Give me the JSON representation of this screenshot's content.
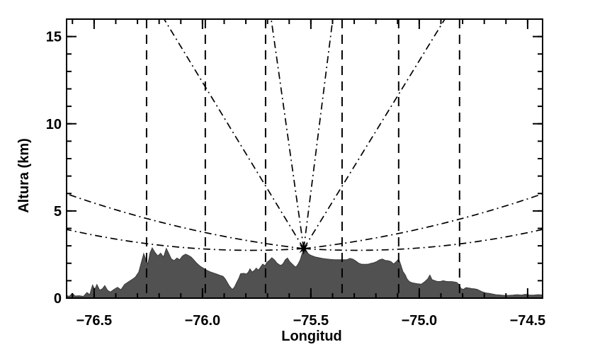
{
  "figure": {
    "description": "Terrain altitude cross-section with radar beams radiating from volcano summit"
  },
  "chart_data": {
    "type": "line",
    "title": "",
    "xlabel": "Longitud",
    "ylabel": "Altura (km)",
    "xlim": [
      -76.627,
      -74.431
    ],
    "ylim": [
      0,
      16
    ],
    "grid": false,
    "xticks": {
      "major": [
        -76.5,
        -76.0,
        -75.5,
        -75.0,
        -74.5
      ],
      "labels": [
        "−76.5",
        "−76.0",
        "−75.5",
        "−75.0",
        "−74.5"
      ],
      "minor_step": 0.1
    },
    "yticks": {
      "major": [
        0,
        5,
        10,
        15
      ],
      "labels": [
        "0",
        "5",
        "10",
        "15"
      ],
      "minor_step": 1
    },
    "radar": {
      "lon": -75.533,
      "alt_km": 2.84,
      "marker": "star"
    },
    "vertical_dashed_lines_lon": [
      -76.258,
      -75.987,
      -75.709,
      -75.356,
      -75.095,
      -74.814
    ],
    "beams_straight": [
      {
        "end_lon": -76.177,
        "end_alt": 16
      },
      {
        "end_lon": -75.683,
        "end_alt": 16
      },
      {
        "end_lon": -75.399,
        "end_alt": 16
      },
      {
        "end_lon": -74.882,
        "end_alt": 16
      }
    ],
    "beams_curved": [
      {
        "end": [
          -76.627,
          5.98
        ],
        "ctrl": [
          -76.08,
          3.62
        ]
      },
      {
        "end": [
          -76.627,
          3.94
        ],
        "ctrl": [
          -76.08,
          2.4
        ]
      },
      {
        "end": [
          -74.431,
          5.98
        ],
        "ctrl": [
          -74.982,
          3.62
        ]
      },
      {
        "end": [
          -74.431,
          3.94
        ],
        "ctrl": [
          -74.982,
          2.4
        ]
      }
    ],
    "terrain_profile": [
      [
        -76.627,
        0.15
      ],
      [
        -76.614,
        0.1
      ],
      [
        -76.601,
        0.28
      ],
      [
        -76.588,
        0.12
      ],
      [
        -76.569,
        0.14
      ],
      [
        -76.549,
        0.1
      ],
      [
        -76.533,
        0.32
      ],
      [
        -76.52,
        0.2
      ],
      [
        -76.507,
        0.75
      ],
      [
        -76.497,
        0.5
      ],
      [
        -76.487,
        0.78
      ],
      [
        -76.474,
        0.45
      ],
      [
        -76.461,
        0.55
      ],
      [
        -76.451,
        0.72
      ],
      [
        -76.438,
        0.45
      ],
      [
        -76.425,
        0.35
      ],
      [
        -76.408,
        0.5
      ],
      [
        -76.392,
        0.62
      ],
      [
        -76.376,
        0.48
      ],
      [
        -76.36,
        0.78
      ],
      [
        -76.343,
        0.92
      ],
      [
        -76.327,
        1.05
      ],
      [
        -76.31,
        1.2
      ],
      [
        -76.294,
        1.5
      ],
      [
        -76.281,
        2.1
      ],
      [
        -76.271,
        2.55
      ],
      [
        -76.261,
        2.2
      ],
      [
        -76.252,
        1.95
      ],
      [
        -76.242,
        2.6
      ],
      [
        -76.232,
        2.88
      ],
      [
        -76.219,
        2.62
      ],
      [
        -76.206,
        2.42
      ],
      [
        -76.193,
        2.58
      ],
      [
        -76.18,
        2.35
      ],
      [
        -76.167,
        2.85
      ],
      [
        -76.157,
        2.6
      ],
      [
        -76.144,
        2.25
      ],
      [
        -76.131,
        2.15
      ],
      [
        -76.118,
        2.3
      ],
      [
        -76.105,
        2.2
      ],
      [
        -76.092,
        2.42
      ],
      [
        -76.078,
        2.52
      ],
      [
        -76.065,
        2.45
      ],
      [
        -76.052,
        2.35
      ],
      [
        -76.039,
        2.18
      ],
      [
        -76.026,
        2.0
      ],
      [
        -76.013,
        1.85
      ],
      [
        -75.997,
        1.72
      ],
      [
        -75.984,
        1.62
      ],
      [
        -75.967,
        1.52
      ],
      [
        -75.951,
        1.45
      ],
      [
        -75.935,
        1.38
      ],
      [
        -75.918,
        1.3
      ],
      [
        -75.905,
        1.25
      ],
      [
        -75.895,
        1.1
      ],
      [
        -75.886,
        0.9
      ],
      [
        -75.876,
        0.7
      ],
      [
        -75.863,
        0.5
      ],
      [
        -75.853,
        0.62
      ],
      [
        -75.843,
        0.88
      ],
      [
        -75.833,
        1.12
      ],
      [
        -75.824,
        1.4
      ],
      [
        -75.81,
        1.42
      ],
      [
        -75.797,
        1.38
      ],
      [
        -75.788,
        1.5
      ],
      [
        -75.781,
        1.68
      ],
      [
        -75.771,
        1.5
      ],
      [
        -75.761,
        1.58
      ],
      [
        -75.752,
        1.72
      ],
      [
        -75.742,
        1.6
      ],
      [
        -75.732,
        1.78
      ],
      [
        -75.722,
        1.95
      ],
      [
        -75.712,
        1.86
      ],
      [
        -75.703,
        2.05
      ],
      [
        -75.693,
        2.15
      ],
      [
        -75.68,
        2.32
      ],
      [
        -75.667,
        2.18
      ],
      [
        -75.657,
        2.02
      ],
      [
        -75.647,
        1.92
      ],
      [
        -75.637,
        1.88
      ],
      [
        -75.627,
        2.0
      ],
      [
        -75.618,
        2.2
      ],
      [
        -75.608,
        2.3
      ],
      [
        -75.598,
        2.1
      ],
      [
        -75.588,
        1.98
      ],
      [
        -75.578,
        1.85
      ],
      [
        -75.569,
        1.78
      ],
      [
        -75.559,
        1.95
      ],
      [
        -75.549,
        2.2
      ],
      [
        -75.539,
        2.6
      ],
      [
        -75.533,
        2.88
      ],
      [
        -75.526,
        2.75
      ],
      [
        -75.516,
        2.6
      ],
      [
        -75.507,
        2.5
      ],
      [
        -75.493,
        2.42
      ],
      [
        -75.48,
        2.36
      ],
      [
        -75.464,
        2.32
      ],
      [
        -75.448,
        2.28
      ],
      [
        -75.431,
        2.25
      ],
      [
        -75.412,
        2.22
      ],
      [
        -75.392,
        2.2
      ],
      [
        -75.373,
        2.2
      ],
      [
        -75.353,
        2.2
      ],
      [
        -75.333,
        2.21
      ],
      [
        -75.32,
        2.28
      ],
      [
        -75.307,
        2.24
      ],
      [
        -75.294,
        2.14
      ],
      [
        -75.281,
        2.02
      ],
      [
        -75.268,
        1.95
      ],
      [
        -75.252,
        1.94
      ],
      [
        -75.235,
        1.95
      ],
      [
        -75.222,
        2.0
      ],
      [
        -75.209,
        2.03
      ],
      [
        -75.196,
        2.1
      ],
      [
        -75.183,
        2.2
      ],
      [
        -75.17,
        2.24
      ],
      [
        -75.157,
        2.16
      ],
      [
        -75.144,
        2.15
      ],
      [
        -75.131,
        2.1
      ],
      [
        -75.118,
        1.96
      ],
      [
        -75.105,
        2.1
      ],
      [
        -75.095,
        2.25
      ],
      [
        -75.085,
        1.9
      ],
      [
        -75.075,
        1.52
      ],
      [
        -75.065,
        1.34
      ],
      [
        -75.056,
        1.1
      ],
      [
        -75.046,
        0.95
      ],
      [
        -75.033,
        0.88
      ],
      [
        -75.02,
        0.85
      ],
      [
        -75.007,
        0.82
      ],
      [
        -74.99,
        0.8
      ],
      [
        -74.974,
        0.95
      ],
      [
        -74.961,
        1.1
      ],
      [
        -74.951,
        1.32
      ],
      [
        -74.941,
        1.06
      ],
      [
        -74.928,
        1.0
      ],
      [
        -74.915,
        0.95
      ],
      [
        -74.902,
        0.96
      ],
      [
        -74.889,
        1.0
      ],
      [
        -74.876,
        0.96
      ],
      [
        -74.863,
        0.95
      ],
      [
        -74.85,
        0.95
      ],
      [
        -74.837,
        0.92
      ],
      [
        -74.827,
        0.9
      ],
      [
        -74.817,
        0.78
      ],
      [
        -74.807,
        0.55
      ],
      [
        -74.797,
        0.5
      ],
      [
        -74.784,
        0.6
      ],
      [
        -74.771,
        0.58
      ],
      [
        -74.758,
        0.55
      ],
      [
        -74.745,
        0.53
      ],
      [
        -74.732,
        0.5
      ],
      [
        -74.719,
        0.42
      ],
      [
        -74.706,
        0.35
      ],
      [
        -74.693,
        0.3
      ],
      [
        -74.68,
        0.28
      ],
      [
        -74.663,
        0.24
      ],
      [
        -74.647,
        0.2
      ],
      [
        -74.627,
        0.18
      ],
      [
        -74.608,
        0.16
      ],
      [
        -74.588,
        0.16
      ],
      [
        -74.569,
        0.17
      ],
      [
        -74.549,
        0.2
      ],
      [
        -74.529,
        0.17
      ],
      [
        -74.51,
        0.22
      ],
      [
        -74.49,
        0.17
      ],
      [
        -74.47,
        0.18
      ],
      [
        -74.451,
        0.2
      ],
      [
        -74.431,
        0.18
      ]
    ],
    "colors": {
      "terrain_fill": "#515151",
      "terrain_edge": "#3a3a3a",
      "line": "#000000",
      "background": "#ffffff"
    },
    "legend": null
  }
}
